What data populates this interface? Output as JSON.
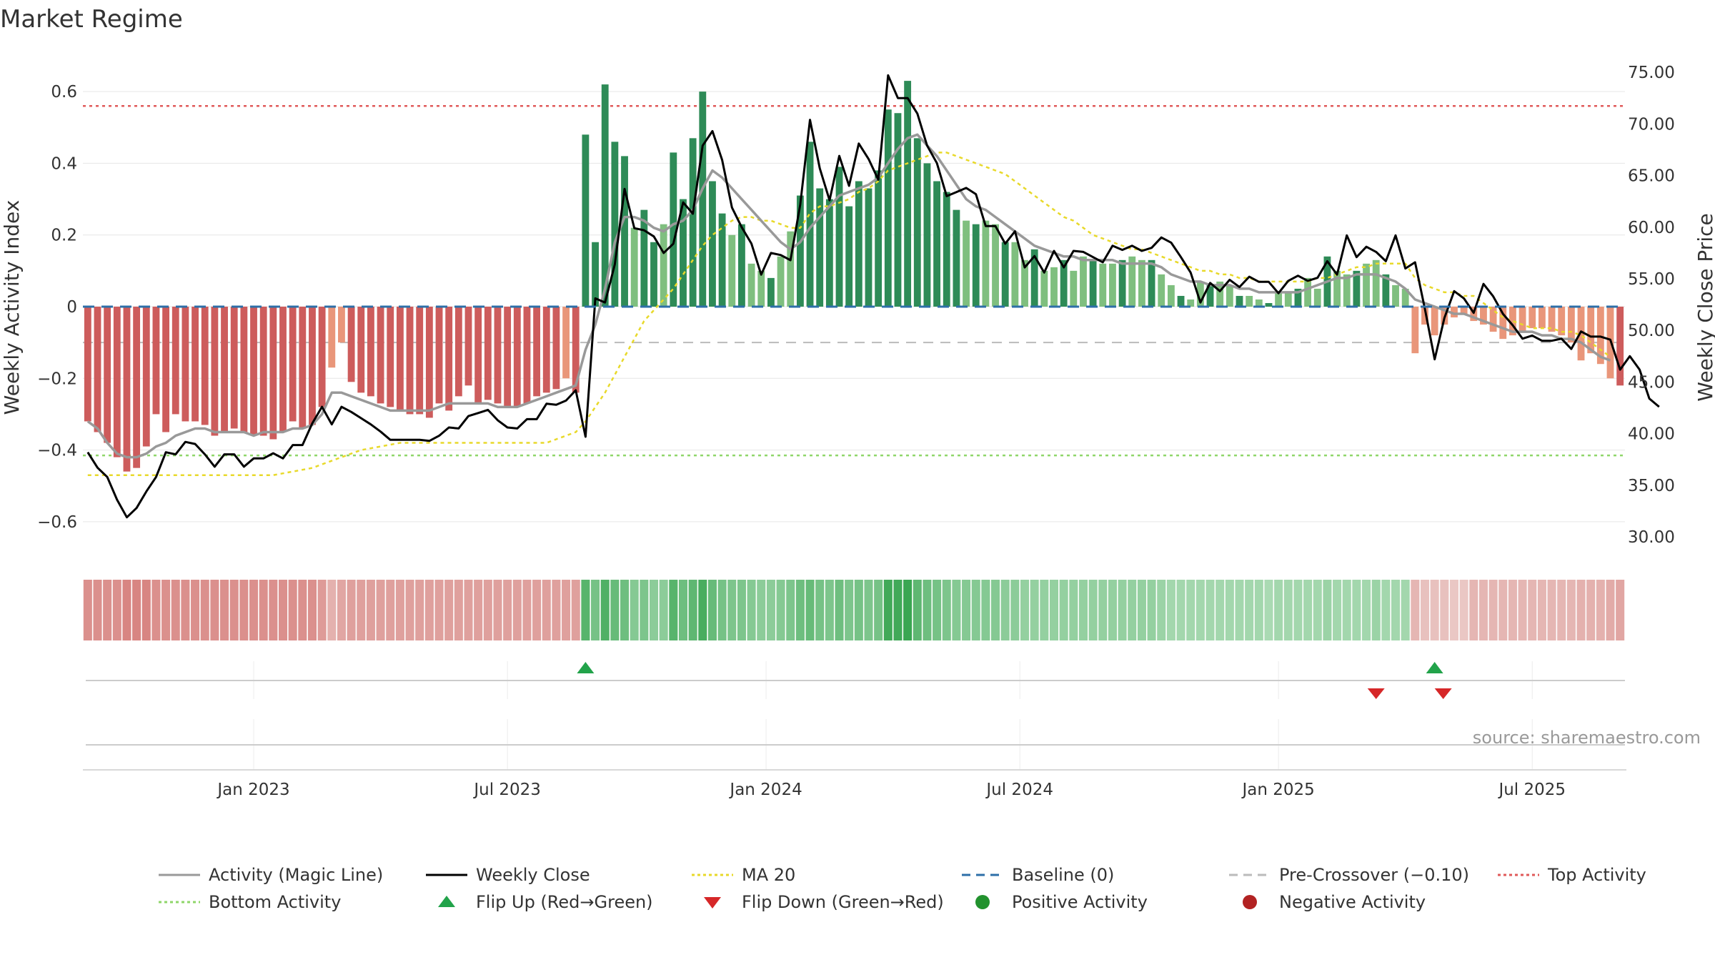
{
  "chart_data": {
    "type": "bar",
    "title": "Market Regime",
    "source": "source: sharemaestro.com",
    "ylabel_left": "Weekly Activity Index",
    "ylabel_right": "Weekly Close Price",
    "left_ylim": [
      -0.7,
      0.7
    ],
    "right_ylim": [
      28.0,
      76.6
    ],
    "left_ticks": [
      {
        "v": 0.6,
        "label": "0.6"
      },
      {
        "v": 0.4,
        "label": "0.4"
      },
      {
        "v": 0.2,
        "label": "0.2"
      },
      {
        "v": 0.0,
        "label": "0"
      },
      {
        "v": -0.2,
        "label": "−0.2"
      },
      {
        "v": -0.4,
        "label": "−0.4"
      },
      {
        "v": -0.6,
        "label": "−0.6"
      }
    ],
    "right_ticks": [
      {
        "v": 75,
        "label": "75.00"
      },
      {
        "v": 70,
        "label": "70.00"
      },
      {
        "v": 65,
        "label": "65.00"
      },
      {
        "v": 60,
        "label": "60.00"
      },
      {
        "v": 55,
        "label": "55.00"
      },
      {
        "v": 50,
        "label": "50.00"
      },
      {
        "v": 45,
        "label": "45.00"
      },
      {
        "v": 40,
        "label": "40.00"
      },
      {
        "v": 35,
        "label": "35.00"
      },
      {
        "v": 30,
        "label": "30.00"
      }
    ],
    "x_ticks": [
      {
        "week": 17.5,
        "label": "Jan 2023"
      },
      {
        "week": 43.5,
        "label": "Jul 2023"
      },
      {
        "week": 70,
        "label": "Jan 2024"
      },
      {
        "week": 96,
        "label": "Jul 2024"
      },
      {
        "week": 122.5,
        "label": "Jan 2025"
      },
      {
        "week": 148.5,
        "label": "Jul 2025"
      }
    ],
    "reference_lines": {
      "baseline": 0,
      "pre_crossover": -0.1,
      "top_activity": 0.56,
      "bottom_activity": -0.415
    },
    "activity": [
      -0.32,
      -0.35,
      -0.38,
      -0.42,
      -0.46,
      -0.45,
      -0.39,
      -0.3,
      -0.35,
      -0.3,
      -0.32,
      -0.32,
      -0.33,
      -0.36,
      -0.35,
      -0.34,
      -0.35,
      -0.36,
      -0.36,
      -0.37,
      -0.35,
      -0.32,
      -0.34,
      -0.33,
      -0.28,
      -0.17,
      -0.1,
      -0.21,
      -0.24,
      -0.25,
      -0.27,
      -0.28,
      -0.29,
      -0.3,
      -0.3,
      -0.31,
      -0.27,
      -0.29,
      -0.25,
      -0.22,
      -0.27,
      -0.26,
      -0.27,
      -0.28,
      -0.28,
      -0.27,
      -0.25,
      -0.24,
      -0.23,
      -0.2,
      -0.24,
      0.48,
      0.18,
      0.62,
      0.46,
      0.42,
      0.22,
      0.27,
      0.18,
      0.23,
      0.43,
      0.3,
      0.47,
      0.6,
      0.35,
      0.26,
      0.2,
      0.23,
      0.12,
      0.1,
      0.08,
      0.14,
      0.21,
      0.31,
      0.46,
      0.33,
      0.3,
      0.39,
      0.28,
      0.35,
      0.33,
      0.38,
      0.55,
      0.54,
      0.63,
      0.47,
      0.4,
      0.35,
      0.32,
      0.27,
      0.24,
      0.23,
      0.24,
      0.23,
      0.18,
      0.18,
      0.13,
      0.16,
      0.1,
      0.11,
      0.13,
      0.1,
      0.14,
      0.13,
      0.12,
      0.12,
      0.13,
      0.14,
      0.13,
      0.13,
      0.09,
      0.06,
      0.03,
      0.02,
      0.07,
      0.06,
      0.07,
      0.06,
      0.03,
      0.03,
      0.02,
      0.01,
      0.04,
      0.04,
      0.05,
      0.08,
      0.05,
      0.14,
      0.1,
      0.09,
      0.1,
      0.12,
      0.13,
      0.09,
      0.06,
      0.05,
      -0.13,
      -0.05,
      -0.08,
      -0.05,
      -0.03,
      -0.02,
      -0.04,
      -0.05,
      -0.07,
      -0.09,
      -0.08,
      -0.07,
      -0.06,
      -0.06,
      -0.07,
      -0.08,
      -0.1,
      -0.15,
      -0.13,
      -0.16,
      -0.2,
      -0.22
    ],
    "magic_line": [
      -0.32,
      -0.34,
      -0.38,
      -0.41,
      -0.42,
      -0.42,
      -0.41,
      -0.39,
      -0.38,
      -0.36,
      -0.35,
      -0.34,
      -0.34,
      -0.35,
      -0.35,
      -0.35,
      -0.35,
      -0.36,
      -0.35,
      -0.35,
      -0.35,
      -0.34,
      -0.34,
      -0.33,
      -0.3,
      -0.24,
      -0.24,
      -0.25,
      -0.26,
      -0.27,
      -0.28,
      -0.29,
      -0.29,
      -0.29,
      -0.29,
      -0.29,
      -0.28,
      -0.27,
      -0.27,
      -0.27,
      -0.27,
      -0.27,
      -0.28,
      -0.28,
      -0.28,
      -0.27,
      -0.26,
      -0.25,
      -0.24,
      -0.23,
      -0.22,
      -0.12,
      -0.05,
      0.05,
      0.18,
      0.25,
      0.25,
      0.24,
      0.22,
      0.21,
      0.23,
      0.24,
      0.27,
      0.33,
      0.38,
      0.36,
      0.33,
      0.3,
      0.27,
      0.24,
      0.21,
      0.18,
      0.16,
      0.18,
      0.22,
      0.25,
      0.28,
      0.31,
      0.32,
      0.33,
      0.34,
      0.36,
      0.4,
      0.44,
      0.47,
      0.48,
      0.45,
      0.42,
      0.38,
      0.34,
      0.3,
      0.28,
      0.27,
      0.25,
      0.23,
      0.21,
      0.19,
      0.17,
      0.16,
      0.15,
      0.14,
      0.14,
      0.13,
      0.13,
      0.13,
      0.13,
      0.12,
      0.12,
      0.12,
      0.12,
      0.11,
      0.09,
      0.08,
      0.07,
      0.07,
      0.06,
      0.06,
      0.06,
      0.05,
      0.05,
      0.04,
      0.04,
      0.04,
      0.04,
      0.04,
      0.05,
      0.06,
      0.07,
      0.08,
      0.08,
      0.09,
      0.09,
      0.09,
      0.08,
      0.07,
      0.05,
      0.02,
      0.01,
      0.0,
      -0.01,
      -0.02,
      -0.02,
      -0.03,
      -0.04,
      -0.05,
      -0.06,
      -0.07,
      -0.07,
      -0.07,
      -0.08,
      -0.08,
      -0.09,
      -0.09,
      -0.1,
      -0.12,
      -0.14,
      -0.15
    ],
    "ma20": [
      -0.47,
      -0.47,
      -0.47,
      -0.47,
      -0.47,
      -0.47,
      -0.47,
      -0.47,
      -0.47,
      -0.47,
      -0.47,
      -0.47,
      -0.47,
      -0.47,
      -0.47,
      -0.47,
      -0.47,
      -0.47,
      -0.47,
      -0.47,
      -0.465,
      -0.46,
      -0.455,
      -0.45,
      -0.44,
      -0.43,
      -0.42,
      -0.41,
      -0.4,
      -0.395,
      -0.39,
      -0.385,
      -0.38,
      -0.38,
      -0.38,
      -0.38,
      -0.38,
      -0.38,
      -0.38,
      -0.38,
      -0.38,
      -0.38,
      -0.38,
      -0.38,
      -0.38,
      -0.38,
      -0.38,
      -0.38,
      -0.37,
      -0.36,
      -0.35,
      -0.32,
      -0.28,
      -0.24,
      -0.19,
      -0.14,
      -0.09,
      -0.04,
      -0.01,
      0.02,
      0.05,
      0.09,
      0.13,
      0.17,
      0.2,
      0.22,
      0.24,
      0.25,
      0.25,
      0.24,
      0.24,
      0.23,
      0.22,
      0.22,
      0.26,
      0.28,
      0.28,
      0.29,
      0.3,
      0.32,
      0.33,
      0.35,
      0.38,
      0.39,
      0.4,
      0.41,
      0.42,
      0.43,
      0.43,
      0.42,
      0.41,
      0.4,
      0.39,
      0.38,
      0.37,
      0.35,
      0.33,
      0.31,
      0.29,
      0.27,
      0.25,
      0.24,
      0.22,
      0.2,
      0.19,
      0.18,
      0.17,
      0.16,
      0.16,
      0.15,
      0.14,
      0.13,
      0.12,
      0.11,
      0.1,
      0.1,
      0.09,
      0.09,
      0.08,
      0.08,
      0.07,
      0.07,
      0.07,
      0.07,
      0.07,
      0.07,
      0.08,
      0.08,
      0.09,
      0.1,
      0.11,
      0.11,
      0.12,
      0.12,
      0.12,
      0.12,
      0.08,
      0.06,
      0.05,
      0.04,
      0.04,
      0.03,
      0.03,
      0.01,
      -0.01,
      -0.03,
      -0.04,
      -0.05,
      -0.06,
      -0.06,
      -0.06,
      -0.07,
      -0.07,
      -0.08,
      -0.1,
      -0.12,
      -0.14
    ],
    "close": [
      38.2,
      36.7,
      35.8,
      33.6,
      31.9,
      32.8,
      34.4,
      35.8,
      38.2,
      38.0,
      39.2,
      39.0,
      38.0,
      36.8,
      38.0,
      38.0,
      36.8,
      37.6,
      37.6,
      38.1,
      37.6,
      38.9,
      38.9,
      41.0,
      42.6,
      40.9,
      42.6,
      42.1,
      41.5,
      40.9,
      40.2,
      39.4,
      39.4,
      39.4,
      39.4,
      39.3,
      39.8,
      40.6,
      40.5,
      41.7,
      42.0,
      42.3,
      41.3,
      40.6,
      40.5,
      41.4,
      41.4,
      42.9,
      42.8,
      43.2,
      44.2,
      39.7,
      53.1,
      52.7,
      56.4,
      63.7,
      59.9,
      59.7,
      59.1,
      57.5,
      58.4,
      62.4,
      61.3,
      67.9,
      69.3,
      66.5,
      61.9,
      60.0,
      58.4,
      55.4,
      57.5,
      57.3,
      56.8,
      62.2,
      70.4,
      65.7,
      62.6,
      66.9,
      64.0,
      68.1,
      66.6,
      64.6,
      74.7,
      72.5,
      72.5,
      71.0,
      67.9,
      66.2,
      63.0,
      63.4,
      63.8,
      63.2,
      60.1,
      60.1,
      58.4,
      59.6,
      56.1,
      57.2,
      55.6,
      57.7,
      56.1,
      57.7,
      57.6,
      57.1,
      56.6,
      58.2,
      57.8,
      58.2,
      57.7,
      58.0,
      59.0,
      58.5,
      57.1,
      55.6,
      52.7,
      54.6,
      53.8,
      54.9,
      54.2,
      55.2,
      54.7,
      54.7,
      53.6,
      54.8,
      55.3,
      54.8,
      55.1,
      56.7,
      55.4,
      59.2,
      57.1,
      58.1,
      57.6,
      56.7,
      59.2,
      56.0,
      56.6,
      52.1,
      47.2,
      51.2,
      53.8,
      53.1,
      51.7,
      54.5,
      53.3,
      51.6,
      50.5,
      49.2,
      49.5,
      49.0,
      49.0,
      49.2,
      48.2,
      49.9,
      49.4,
      49.4,
      49.1,
      46.2,
      47.5,
      46.2,
      43.4,
      42.6
    ],
    "regime_strip": [
      -0.65,
      -0.65,
      -0.65,
      -0.65,
      -0.75,
      -0.75,
      -0.75,
      -0.65,
      -0.65,
      -0.65,
      -0.65,
      -0.65,
      -0.65,
      -0.65,
      -0.65,
      -0.65,
      -0.65,
      -0.65,
      -0.65,
      -0.65,
      -0.65,
      -0.65,
      -0.65,
      -0.65,
      -0.55,
      -0.35,
      -0.45,
      -0.5,
      -0.5,
      -0.5,
      -0.5,
      -0.5,
      -0.5,
      -0.5,
      -0.5,
      -0.5,
      -0.5,
      -0.5,
      -0.5,
      -0.5,
      -0.5,
      -0.5,
      -0.5,
      -0.5,
      -0.5,
      -0.5,
      -0.5,
      -0.5,
      -0.5,
      -0.5,
      -0.5,
      0.75,
      0.55,
      0.8,
      0.65,
      0.6,
      0.45,
      0.5,
      0.4,
      0.4,
      0.75,
      0.6,
      0.7,
      0.85,
      0.65,
      0.55,
      0.5,
      0.5,
      0.45,
      0.4,
      0.4,
      0.45,
      0.5,
      0.6,
      0.65,
      0.55,
      0.5,
      0.6,
      0.5,
      0.55,
      0.5,
      0.55,
      0.9,
      0.9,
      0.95,
      0.7,
      0.6,
      0.55,
      0.5,
      0.45,
      0.45,
      0.45,
      0.45,
      0.45,
      0.4,
      0.4,
      0.35,
      0.35,
      0.35,
      0.35,
      0.35,
      0.35,
      0.35,
      0.35,
      0.35,
      0.35,
      0.35,
      0.35,
      0.35,
      0.35,
      0.3,
      0.25,
      0.25,
      0.25,
      0.25,
      0.25,
      0.25,
      0.25,
      0.25,
      0.25,
      0.25,
      0.2,
      0.25,
      0.25,
      0.25,
      0.25,
      0.25,
      0.3,
      0.25,
      0.25,
      0.25,
      0.25,
      0.3,
      0.25,
      0.25,
      0.25,
      -0.3,
      -0.2,
      -0.2,
      -0.2,
      -0.15,
      -0.15,
      -0.3,
      -0.3,
      -0.3,
      -0.3,
      -0.3,
      -0.3,
      -0.3,
      -0.3,
      -0.3,
      -0.3,
      -0.3,
      -0.35,
      -0.35,
      -0.35,
      -0.4,
      -0.45
    ],
    "flip_up_weeks": [
      51,
      138
    ],
    "flip_down_weeks": [
      132,
      138
    ],
    "legend": [
      {
        "label": "Activity (Magic Line)",
        "kind": "line",
        "color": "#999999",
        "dash": ""
      },
      {
        "label": "Weekly Close",
        "kind": "line",
        "color": "#000000",
        "dash": ""
      },
      {
        "label": "MA 20",
        "kind": "line",
        "color": "#e8d92a",
        "dash": "4,4"
      },
      {
        "label": "Baseline (0)",
        "kind": "line",
        "color": "#2d6fa8",
        "dash": "12,8"
      },
      {
        "label": "Pre-Crossover (−0.10)",
        "kind": "line",
        "color": "#bbbbbb",
        "dash": "12,8"
      },
      {
        "label": "Top Activity",
        "kind": "line",
        "color": "#e05a5a",
        "dash": "4,4"
      },
      {
        "label": "Bottom Activity",
        "kind": "line",
        "color": "#8fd66a",
        "dash": "4,4"
      },
      {
        "label": "Flip Up (Red→Green)",
        "kind": "tri-up",
        "color": "#22a34a",
        "dash": ""
      },
      {
        "label": "Flip Down (Green→Red)",
        "kind": "tri-down",
        "color": "#d62728",
        "dash": ""
      },
      {
        "label": "Positive Activity",
        "kind": "dot",
        "color": "#22922e",
        "dash": ""
      },
      {
        "label": "Negative Activity",
        "kind": "dot",
        "color": "#b22222",
        "dash": ""
      }
    ],
    "colors": {
      "pos_strong": "#2e8b57",
      "pos_light": "#7fbf7f",
      "neg_strong": "#cd5c5c",
      "neg_light": "#e9967a",
      "baseline": "#2d6fa8",
      "pre_crossover": "#bbbbbb",
      "top": "#e05a5a",
      "bottom": "#8fd66a",
      "magic": "#999999",
      "close": "#000000",
      "ma20": "#e8d92a"
    }
  }
}
